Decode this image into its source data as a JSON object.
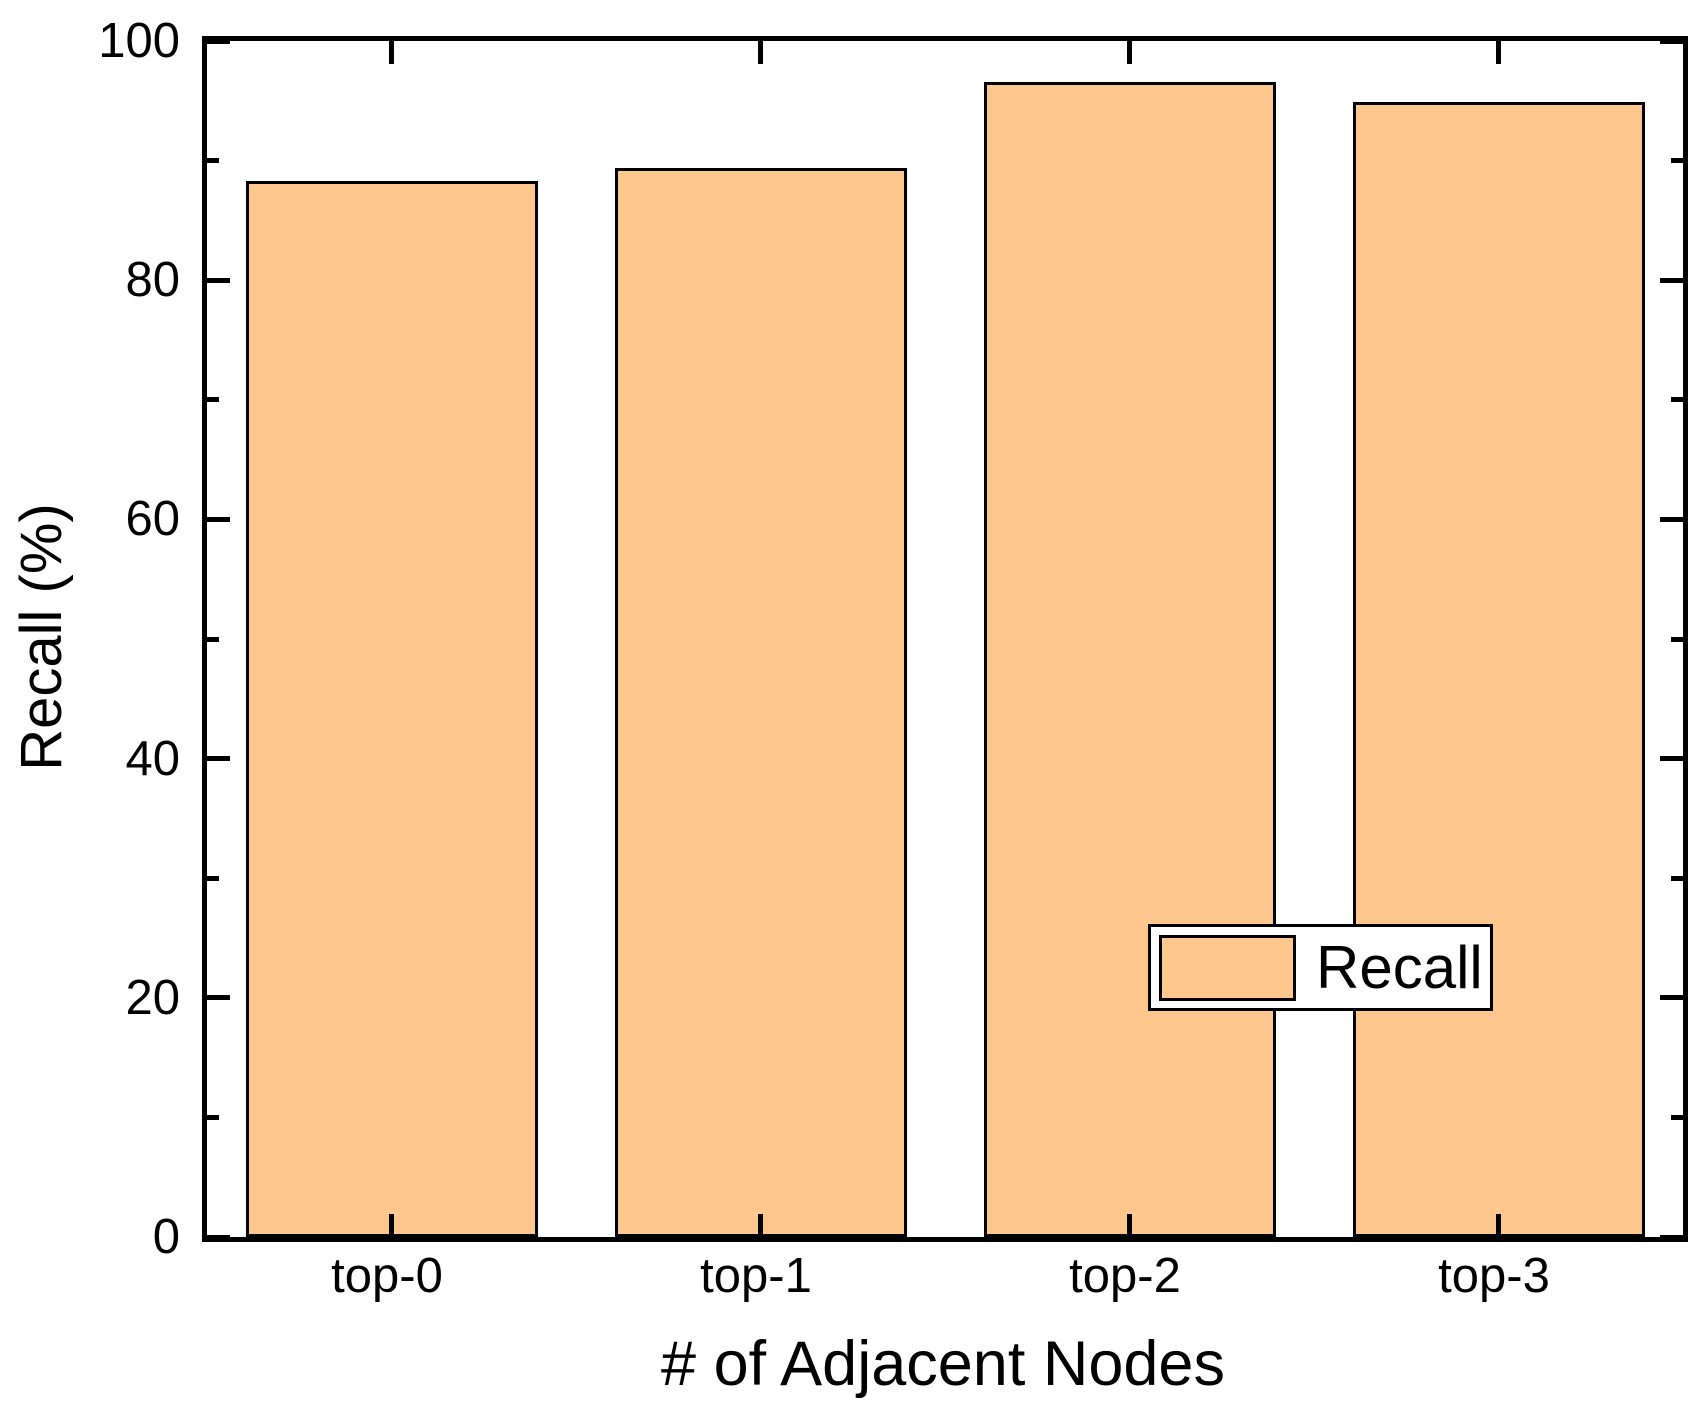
{
  "figure": {
    "background": "#ffffff"
  },
  "chart_data": {
    "type": "bar",
    "title": "",
    "xlabel": "# of Adjacent Nodes",
    "ylabel": "Recall (%)",
    "categories": [
      "top-0",
      "top-1",
      "top-2",
      "top-3"
    ],
    "series": [
      {
        "name": "Recall",
        "values": [
          88.3,
          89.4,
          96.6,
          94.9
        ]
      }
    ],
    "ylim": [
      0,
      100
    ],
    "yticks_major": [
      0,
      20,
      40,
      60,
      80,
      100
    ],
    "ytick_labels": [
      "0",
      "20",
      "40",
      "60",
      "80",
      "100"
    ],
    "yticks_minor": [
      10,
      30,
      50,
      70,
      90
    ],
    "grid": false,
    "tick_direction": "in",
    "legend": {
      "position": "lower-right",
      "entries": [
        "Recall"
      ]
    },
    "colors": {
      "bar_fill": "#fdc78d",
      "bar_edge": "#000000",
      "axis": "#000000",
      "text": "#000000",
      "legend_bg": "#ffffff"
    }
  }
}
